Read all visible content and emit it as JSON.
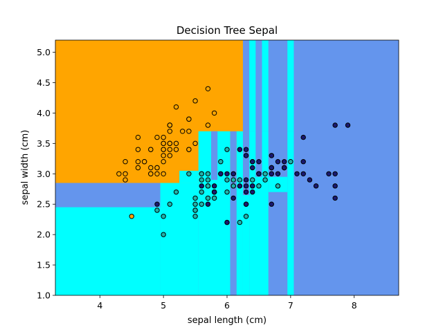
{
  "chart_data": {
    "type": "scatter",
    "title": "Decision Tree Sepal",
    "xlabel": "sepal length (cm)",
    "ylabel": "sepal width (cm)",
    "xlim": [
      3.3,
      8.7
    ],
    "ylim": [
      1.0,
      5.2
    ],
    "xticks": [
      4,
      5,
      6,
      7,
      8
    ],
    "yticks": [
      1.0,
      1.5,
      2.0,
      2.5,
      3.0,
      3.5,
      4.0,
      4.5,
      5.0
    ],
    "grid": false,
    "legend": "none",
    "colors": {
      "class_0": "#FFA500",
      "class_1": "#00FFFF",
      "class_2": "#6495ED",
      "point_0": "#FFA500",
      "point_1": "#20B2AA",
      "point_2": "#191970",
      "edge": "#000000"
    },
    "decision_regions": [
      {
        "class": 2,
        "x": [
          3.3,
          8.7
        ],
        "y": [
          1.0,
          5.2
        ]
      },
      {
        "class": 0,
        "x": [
          3.3,
          6.25
        ],
        "y": [
          2.85,
          5.2
        ]
      },
      {
        "class": 2,
        "x": [
          6.25,
          6.35
        ],
        "y": [
          3.7,
          5.2
        ]
      },
      {
        "class": 1,
        "x": [
          6.35,
          6.45
        ],
        "y": [
          3.7,
          5.2
        ]
      },
      {
        "class": 1,
        "x": [
          6.55,
          6.65
        ],
        "y": [
          3.7,
          5.2
        ]
      },
      {
        "class": 1,
        "x": [
          6.95,
          7.05
        ],
        "y": [
          3.7,
          5.2
        ]
      },
      {
        "class": 1,
        "x": [
          3.3,
          4.95
        ],
        "y": [
          1.0,
          2.45
        ]
      },
      {
        "class": 1,
        "x": [
          4.95,
          5.55
        ],
        "y": [
          1.0,
          2.85
        ]
      },
      {
        "class": 0,
        "x": [
          4.95,
          5.25
        ],
        "y": [
          2.85,
          3.05
        ]
      },
      {
        "class": 1,
        "x": [
          5.25,
          5.55
        ],
        "y": [
          2.85,
          3.05
        ]
      },
      {
        "class": 1,
        "x": [
          5.55,
          6.05
        ],
        "y": [
          1.0,
          3.7
        ]
      },
      {
        "class": 2,
        "x": [
          5.75,
          5.85
        ],
        "y": [
          2.9,
          3.7
        ]
      },
      {
        "class": 1,
        "x": [
          5.85,
          6.05
        ],
        "y": [
          2.9,
          3.15
        ]
      },
      {
        "class": 2,
        "x": [
          6.05,
          6.15
        ],
        "y": [
          1.0,
          3.7
        ]
      },
      {
        "class": 1,
        "x": [
          6.15,
          6.25
        ],
        "y": [
          1.0,
          3.7
        ]
      },
      {
        "class": 1,
        "x": [
          6.25,
          6.35
        ],
        "y": [
          1.0,
          2.65
        ]
      },
      {
        "class": 1,
        "x": [
          6.35,
          6.65
        ],
        "y": [
          1.0,
          2.95
        ]
      },
      {
        "class": 1,
        "x": [
          6.35,
          6.45
        ],
        "y": [
          2.95,
          3.7
        ]
      },
      {
        "class": 1,
        "x": [
          6.55,
          6.65
        ],
        "y": [
          2.95,
          3.7
        ]
      },
      {
        "class": 1,
        "x": [
          6.95,
          7.05
        ],
        "y": [
          1.0,
          3.7
        ]
      },
      {
        "class": 1,
        "x": [
          6.65,
          6.95
        ],
        "y": [
          2.7,
          2.95
        ]
      }
    ],
    "series": [
      {
        "class": 0,
        "points": [
          [
            5.1,
            3.5
          ],
          [
            4.9,
            3.0
          ],
          [
            4.7,
            3.2
          ],
          [
            4.6,
            3.1
          ],
          [
            5.0,
            3.6
          ],
          [
            5.4,
            3.9
          ],
          [
            4.6,
            3.4
          ],
          [
            5.0,
            3.4
          ],
          [
            4.4,
            2.9
          ],
          [
            4.9,
            3.1
          ],
          [
            5.4,
            3.7
          ],
          [
            4.8,
            3.4
          ],
          [
            4.8,
            3.0
          ],
          [
            4.3,
            3.0
          ],
          [
            5.8,
            4.0
          ],
          [
            5.7,
            4.4
          ],
          [
            5.4,
            3.9
          ],
          [
            5.1,
            3.5
          ],
          [
            5.7,
            3.8
          ],
          [
            5.1,
            3.8
          ],
          [
            5.4,
            3.4
          ],
          [
            5.1,
            3.7
          ],
          [
            4.6,
            3.6
          ],
          [
            5.1,
            3.3
          ],
          [
            4.8,
            3.4
          ],
          [
            5.0,
            3.0
          ],
          [
            5.0,
            3.4
          ],
          [
            5.2,
            3.5
          ],
          [
            5.2,
            3.4
          ],
          [
            4.7,
            3.2
          ],
          [
            4.8,
            3.1
          ],
          [
            5.4,
            3.4
          ],
          [
            5.2,
            4.1
          ],
          [
            5.5,
            4.2
          ],
          [
            4.9,
            3.1
          ],
          [
            5.0,
            3.2
          ],
          [
            5.5,
            3.5
          ],
          [
            4.9,
            3.6
          ],
          [
            4.4,
            3.0
          ],
          [
            5.1,
            3.4
          ],
          [
            5.0,
            3.5
          ],
          [
            4.5,
            2.3
          ],
          [
            4.4,
            3.2
          ],
          [
            5.0,
            3.5
          ],
          [
            5.1,
            3.8
          ],
          [
            4.8,
            3.0
          ],
          [
            5.1,
            3.8
          ],
          [
            4.6,
            3.2
          ],
          [
            5.3,
            3.7
          ],
          [
            5.0,
            3.3
          ]
        ]
      },
      {
        "class": 1,
        "points": [
          [
            7.0,
            3.2
          ],
          [
            6.4,
            3.2
          ],
          [
            6.9,
            3.1
          ],
          [
            5.5,
            2.3
          ],
          [
            6.5,
            2.8
          ],
          [
            5.7,
            2.8
          ],
          [
            6.3,
            3.3
          ],
          [
            4.9,
            2.4
          ],
          [
            6.6,
            2.9
          ],
          [
            5.2,
            2.7
          ],
          [
            5.0,
            2.0
          ],
          [
            5.9,
            3.0
          ],
          [
            6.0,
            2.2
          ],
          [
            6.1,
            2.9
          ],
          [
            5.6,
            2.9
          ],
          [
            6.7,
            3.1
          ],
          [
            5.6,
            3.0
          ],
          [
            5.8,
            2.7
          ],
          [
            6.2,
            2.2
          ],
          [
            5.6,
            2.5
          ],
          [
            5.9,
            3.2
          ],
          [
            6.1,
            2.8
          ],
          [
            6.3,
            2.5
          ],
          [
            6.1,
            2.8
          ],
          [
            6.4,
            2.9
          ],
          [
            6.6,
            3.0
          ],
          [
            6.8,
            2.8
          ],
          [
            6.7,
            3.0
          ],
          [
            6.0,
            2.9
          ],
          [
            5.7,
            2.6
          ],
          [
            5.5,
            2.4
          ],
          [
            5.5,
            2.4
          ],
          [
            5.8,
            2.7
          ],
          [
            6.0,
            2.7
          ],
          [
            5.4,
            3.0
          ],
          [
            6.0,
            3.4
          ],
          [
            6.7,
            3.1
          ],
          [
            6.3,
            2.3
          ],
          [
            5.6,
            3.0
          ],
          [
            5.5,
            2.5
          ],
          [
            5.5,
            2.6
          ],
          [
            6.1,
            3.0
          ],
          [
            5.8,
            2.6
          ],
          [
            5.0,
            2.3
          ],
          [
            5.6,
            2.7
          ],
          [
            5.7,
            3.0
          ],
          [
            5.7,
            2.9
          ],
          [
            6.2,
            2.9
          ],
          [
            5.1,
            2.5
          ],
          [
            5.7,
            2.8
          ]
        ]
      },
      {
        "class": 2,
        "points": [
          [
            6.3,
            3.3
          ],
          [
            5.8,
            2.7
          ],
          [
            7.1,
            3.0
          ],
          [
            6.3,
            2.9
          ],
          [
            6.5,
            3.0
          ],
          [
            7.6,
            3.0
          ],
          [
            4.9,
            2.5
          ],
          [
            7.3,
            2.9
          ],
          [
            6.7,
            2.5
          ],
          [
            7.2,
            3.6
          ],
          [
            6.5,
            3.2
          ],
          [
            6.4,
            2.7
          ],
          [
            6.8,
            3.0
          ],
          [
            5.7,
            2.5
          ],
          [
            5.8,
            2.8
          ],
          [
            6.4,
            3.2
          ],
          [
            6.5,
            3.0
          ],
          [
            7.7,
            3.8
          ],
          [
            7.7,
            2.6
          ],
          [
            6.0,
            2.2
          ],
          [
            6.9,
            3.2
          ],
          [
            5.6,
            2.8
          ],
          [
            7.7,
            2.8
          ],
          [
            6.3,
            2.7
          ],
          [
            6.7,
            3.3
          ],
          [
            7.2,
            3.2
          ],
          [
            6.2,
            2.8
          ],
          [
            6.1,
            3.0
          ],
          [
            6.4,
            2.8
          ],
          [
            7.2,
            3.0
          ],
          [
            7.4,
            2.8
          ],
          [
            7.9,
            3.8
          ],
          [
            6.4,
            2.8
          ],
          [
            6.3,
            2.8
          ],
          [
            6.1,
            2.6
          ],
          [
            7.7,
            3.0
          ],
          [
            6.3,
            3.4
          ],
          [
            6.4,
            3.1
          ],
          [
            6.0,
            3.0
          ],
          [
            6.9,
            3.1
          ],
          [
            6.7,
            3.1
          ],
          [
            6.9,
            3.1
          ],
          [
            5.8,
            2.7
          ],
          [
            6.8,
            3.2
          ],
          [
            6.7,
            3.3
          ],
          [
            6.7,
            3.0
          ],
          [
            6.3,
            2.5
          ],
          [
            6.5,
            3.0
          ],
          [
            6.2,
            3.4
          ],
          [
            5.9,
            3.0
          ]
        ]
      }
    ]
  }
}
